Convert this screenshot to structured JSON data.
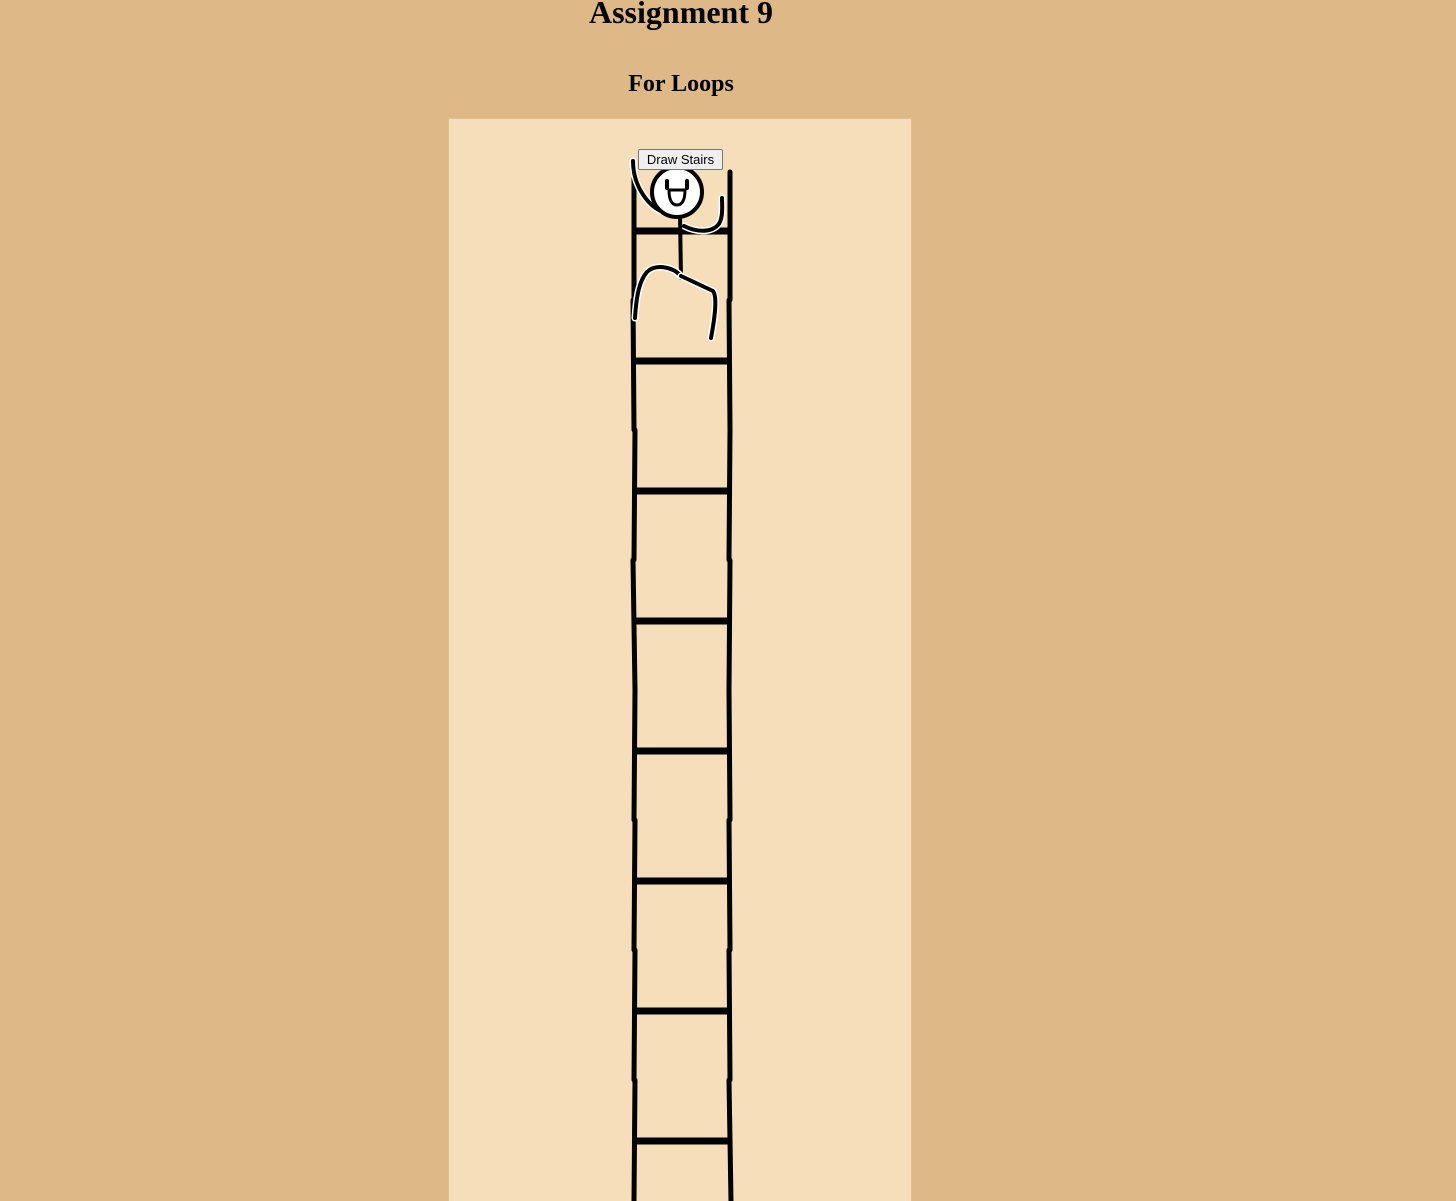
{
  "page": {
    "title": "Assignment 9",
    "subtitle": "For Loops"
  },
  "controls": {
    "draw_button_label": "Draw Stairs"
  },
  "drawing": {
    "rung_count": 8,
    "stroke_color": "#000000",
    "panel_color": "#f5deb9",
    "background_color": "#deb887"
  }
}
